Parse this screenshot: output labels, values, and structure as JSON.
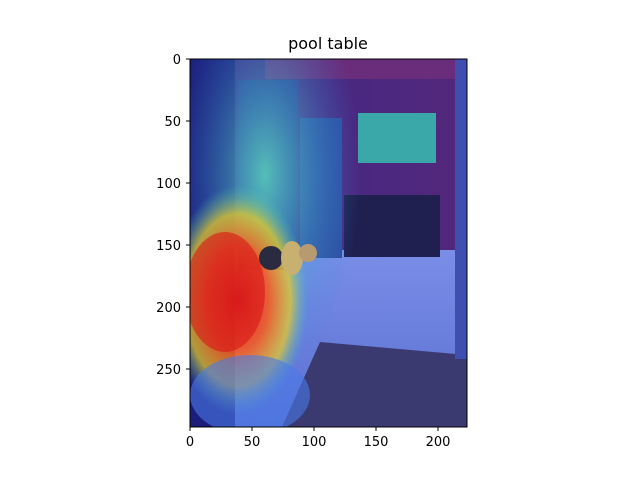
{
  "figure": {
    "title": "pool table"
  },
  "axes": {
    "x_ticks": [
      "0",
      "50",
      "100",
      "150",
      "200"
    ],
    "y_ticks": [
      "0",
      "50",
      "100",
      "150",
      "200",
      "250"
    ],
    "x_range": [
      0,
      224
    ],
    "y_range": [
      0,
      298
    ]
  },
  "image": {
    "description_colors": {
      "wall": "#4b2a7a",
      "floor": "#6e7fd8",
      "heat_hot": "#e01818",
      "heat_warm": "#f0d020",
      "heat_cool": "#30c0e0",
      "heat_cold": "#1a1a9a"
    }
  }
}
